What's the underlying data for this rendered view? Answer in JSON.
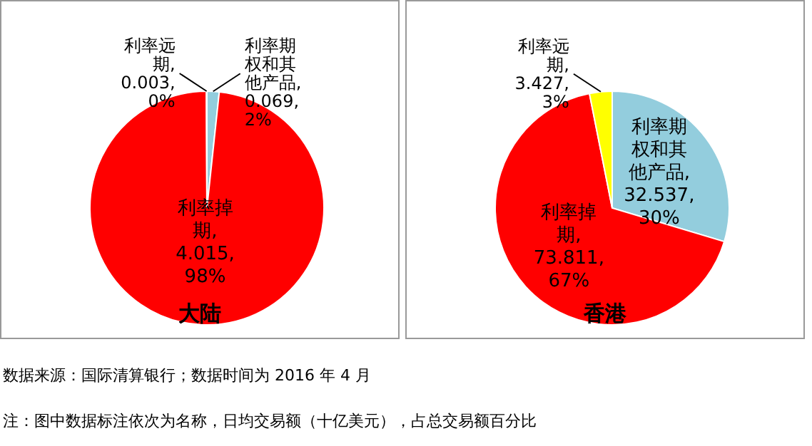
{
  "chart_data": [
    {
      "type": "pie",
      "title": "大陆",
      "categories": [
        "利率期权和其他产品",
        "利率掉期",
        "利率远期"
      ],
      "values": [
        0.069,
        4.015,
        0.003
      ],
      "colors": [
        "#93cddd",
        "#ff0000",
        "#ffff00"
      ],
      "value_labels": [
        ", 0.069, 2%",
        ", 4.015, 98%",
        ", 0.003, 0%"
      ],
      "legend": false,
      "annotations": [
        "数据来源：国际清算银行；数据时间为 2016 年 4 月",
        "注：图中数据标注依次为名称，日均交易额（十亿美元），占总交易额百分比"
      ]
    },
    {
      "type": "pie",
      "title": "香港",
      "categories": [
        "利率期权和其他产品",
        "利率掉期",
        "利率远期"
      ],
      "values": [
        32.537,
        73.811,
        3.427
      ],
      "colors": [
        "#93cddd",
        "#ff0000",
        "#ffff00"
      ],
      "value_labels": [
        ", 32.537, 30%",
        ", 73.811, 67%",
        ", 3.427, 3%"
      ],
      "legend": false
    }
  ]
}
